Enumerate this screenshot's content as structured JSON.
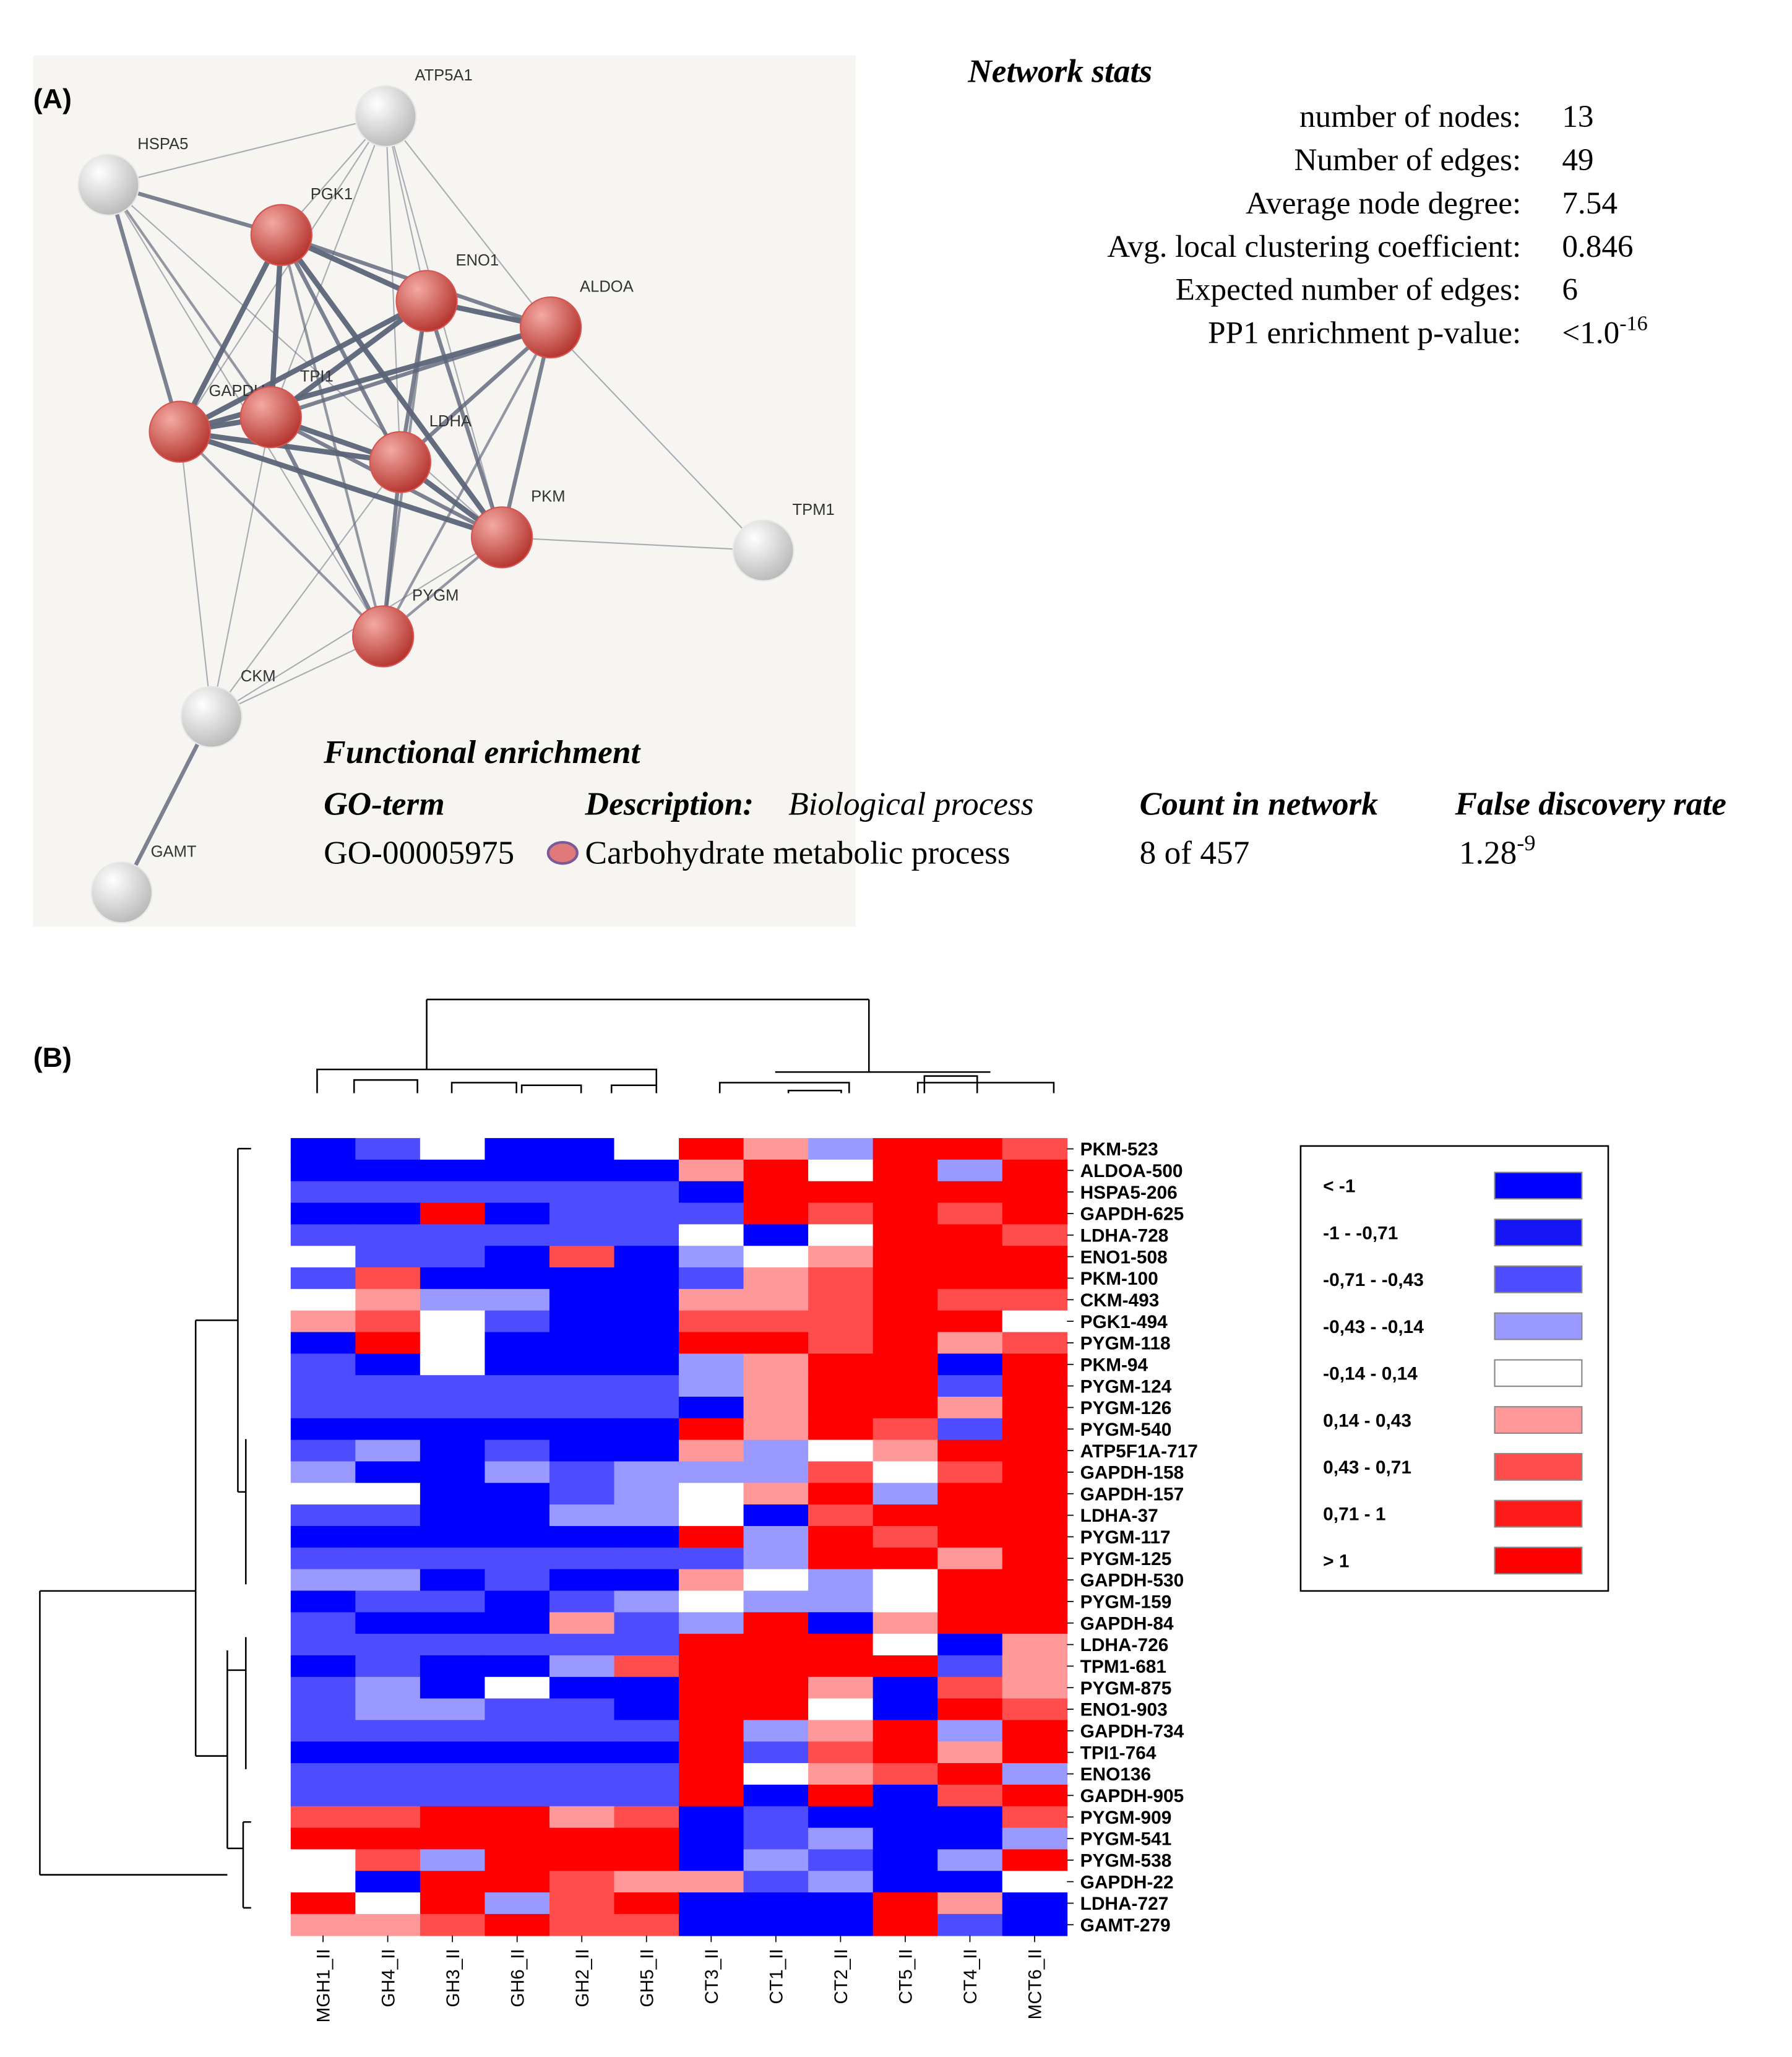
{
  "panel_a": {
    "label": "(A)",
    "network": {
      "nodes": [
        {
          "label": "ATP5A1",
          "color": "#e8e8e8"
        },
        {
          "label": "HSPA5",
          "color": "#e8e8e8"
        },
        {
          "label": "PGK1",
          "color": "#d9534f"
        },
        {
          "label": "ENO1",
          "color": "#d9534f"
        },
        {
          "label": "ALDOA",
          "color": "#d9534f"
        },
        {
          "label": "GAPDH",
          "color": "#d9534f"
        },
        {
          "label": "TPI1",
          "color": "#d9534f"
        },
        {
          "label": "LDHA",
          "color": "#d9534f"
        },
        {
          "label": "PKM",
          "color": "#d9534f"
        },
        {
          "label": "TPM1",
          "color": "#e8e8e8"
        },
        {
          "label": "PYGM",
          "color": "#d9534f"
        },
        {
          "label": "CKM",
          "color": "#e8e8e8"
        },
        {
          "label": "GAMT",
          "color": "#e8e8e8"
        }
      ]
    },
    "stats": {
      "title": "Network stats",
      "rows": [
        {
          "label": "number of nodes:",
          "value": "13"
        },
        {
          "label": "Number of edges:",
          "value": "49"
        },
        {
          "label": "Average node degree:",
          "value": "7.54"
        },
        {
          "label": "Avg. local clustering coefficient:",
          "value": "0.846"
        },
        {
          "label": "Expected number of edges:",
          "value": "6"
        },
        {
          "label": "PP1 enrichment p-value:",
          "value": "<1.0",
          "exponent": "-16"
        }
      ]
    },
    "enrichment": {
      "title": "Functional enrichment",
      "headers": {
        "go_term": "GO-term",
        "description": "Description:",
        "process": "Biological process",
        "count": "Count in network",
        "fdr": "False discovery rate"
      },
      "row": {
        "go_term": "GO-00005975",
        "description": "Carbohydrate metabolic process",
        "count": "8 of 457",
        "fdr": "1.28",
        "fdr_exponent": "-9"
      }
    }
  },
  "panel_b": {
    "label": "(B)"
  },
  "chart_data": {
    "type": "heatmap",
    "columns": [
      "MGH1_II",
      "GH4_II",
      "GH3_II",
      "GH6_II",
      "GH2_II",
      "GH5_II",
      "CT3_II",
      "CT1_II",
      "CT2_II",
      "CT5_II",
      "CT4_II",
      "MCT6_II"
    ],
    "rows": [
      "PKM-523",
      "ALDOA-500",
      "HSPA5-206",
      "GAPDH-625",
      "LDHA-728",
      "ENO1-508",
      "PKM-100",
      "CKM-493",
      "PGK1-494",
      "PYGM-118",
      "PKM-94",
      "PYGM-124",
      "PYGM-126",
      "PYGM-540",
      "ATP5F1A-717",
      "GAPDH-158",
      "GAPDH-157",
      "LDHA-37",
      "PYGM-117",
      "PYGM-125",
      "GAPDH-530",
      "PYGM-159",
      "GAPDH-84",
      "LDHA-726",
      "TPM1-681",
      "PYGM-875",
      "ENO1-903",
      "GAPDH-734",
      "TPI1-764",
      "ENO136",
      "GAPDH-905",
      "PYGM-909",
      "PYGM-541",
      "PYGM-538",
      "GAPDH-22",
      "LDHA-727",
      "GAMT-279"
    ],
    "values": [
      [
        -1.2,
        -0.57,
        0,
        -1.2,
        -1.2,
        0,
        1.2,
        0.28,
        -0.28,
        1.2,
        1.2,
        0.57
      ],
      [
        -1.2,
        -1.2,
        -1.2,
        -1.2,
        -1.2,
        -1.2,
        0.28,
        1.2,
        0,
        1.2,
        -0.28,
        1.2
      ],
      [
        -0.57,
        -0.57,
        -0.57,
        -0.57,
        -0.57,
        -0.57,
        -1.2,
        1.2,
        1.2,
        1.2,
        1.2,
        1.2
      ],
      [
        -1.2,
        -1.2,
        1.2,
        -1.2,
        -0.57,
        -0.57,
        -0.57,
        1.2,
        0.57,
        1.2,
        0.57,
        1.2
      ],
      [
        -0.57,
        -0.57,
        -0.57,
        -0.57,
        -0.57,
        -0.57,
        0,
        -1.2,
        0,
        1.2,
        1.2,
        0.57
      ],
      [
        0,
        -0.57,
        -0.57,
        -1.2,
        0.57,
        -1.2,
        -0.28,
        0,
        0.28,
        1.2,
        1.2,
        1.2
      ],
      [
        -0.57,
        0.57,
        -1.2,
        -1.2,
        -1.2,
        -1.2,
        -0.57,
        0.28,
        0.57,
        1.2,
        1.2,
        1.2
      ],
      [
        0,
        0.28,
        -0.28,
        -0.28,
        -1.2,
        -1.2,
        0.28,
        0.28,
        0.57,
        1.2,
        0.57,
        0.57
      ],
      [
        0.28,
        0.57,
        0,
        -0.57,
        -1.2,
        -1.2,
        0.57,
        0.57,
        0.57,
        1.2,
        1.2,
        0
      ],
      [
        -1.2,
        1.2,
        0,
        -1.2,
        -1.2,
        -1.2,
        1.2,
        1.2,
        0.57,
        1.2,
        0.28,
        0.57
      ],
      [
        -0.57,
        -1.2,
        0,
        -1.2,
        -1.2,
        -1.2,
        -0.28,
        0.28,
        1.2,
        1.2,
        -1.2,
        1.2
      ],
      [
        -0.57,
        -0.57,
        -0.57,
        -0.57,
        -0.57,
        -0.57,
        -0.28,
        0.28,
        1.2,
        1.2,
        -0.57,
        1.2
      ],
      [
        -0.57,
        -0.57,
        -0.57,
        -0.57,
        -0.57,
        -0.57,
        -1.2,
        0.28,
        1.2,
        1.2,
        0.28,
        1.2
      ],
      [
        -1.2,
        -1.2,
        -1.2,
        -1.2,
        -1.2,
        -1.2,
        1.2,
        0.28,
        1.2,
        0.57,
        -0.57,
        1.2
      ],
      [
        -0.57,
        -0.28,
        -1.2,
        -0.57,
        -1.2,
        -1.2,
        0.28,
        -0.28,
        0,
        0.28,
        1.2,
        1.2
      ],
      [
        -0.28,
        -1.2,
        -1.2,
        -0.28,
        -0.57,
        -0.28,
        -0.28,
        -0.28,
        0.57,
        0,
        0.57,
        1.2
      ],
      [
        0,
        0,
        -1.2,
        -1.2,
        -0.57,
        -0.28,
        0,
        0.28,
        1.2,
        -0.28,
        1.2,
        1.2
      ],
      [
        -0.57,
        -0.57,
        -1.2,
        -1.2,
        -0.28,
        -0.28,
        0,
        -1.2,
        0.57,
        1.2,
        1.2,
        1.2
      ],
      [
        -1.2,
        -1.2,
        -1.2,
        -1.2,
        -1.2,
        -1.2,
        1.2,
        -0.28,
        1.2,
        0.57,
        1.2,
        1.2
      ],
      [
        -0.57,
        -0.57,
        -0.57,
        -0.57,
        -0.57,
        -0.57,
        -0.57,
        -0.28,
        1.2,
        1.2,
        0.28,
        1.2
      ],
      [
        -0.28,
        -0.28,
        -1.2,
        -0.57,
        -1.2,
        -1.2,
        0.28,
        0,
        -0.28,
        0,
        1.2,
        1.2
      ],
      [
        -1.2,
        -0.57,
        -0.57,
        -1.2,
        -0.57,
        -0.28,
        0,
        -0.28,
        -0.28,
        0,
        1.2,
        1.2
      ],
      [
        -0.57,
        -1.2,
        -1.2,
        -1.2,
        0.28,
        -0.57,
        -0.28,
        1.2,
        -1.2,
        0.28,
        1.2,
        1.2
      ],
      [
        -0.57,
        -0.57,
        -0.57,
        -0.57,
        -0.57,
        -0.57,
        1.2,
        1.2,
        1.2,
        0,
        -1.2,
        0.28
      ],
      [
        -1.2,
        -0.57,
        -1.2,
        -1.2,
        -0.28,
        0.57,
        1.2,
        1.2,
        1.2,
        1.2,
        -0.57,
        0.28
      ],
      [
        -0.57,
        -0.28,
        -1.2,
        0,
        -1.2,
        -1.2,
        1.2,
        1.2,
        0.28,
        -1.2,
        0.57,
        0.28
      ],
      [
        -0.57,
        -0.28,
        -0.28,
        -0.57,
        -0.57,
        -1.2,
        1.2,
        1.2,
        0,
        -1.2,
        1.2,
        0.57
      ],
      [
        -0.57,
        -0.57,
        -0.57,
        -0.57,
        -0.57,
        -0.57,
        1.2,
        -0.28,
        0.28,
        1.2,
        -0.28,
        1.2
      ],
      [
        -1.2,
        -1.2,
        -1.2,
        -1.2,
        -1.2,
        -1.2,
        1.2,
        -0.57,
        0.57,
        1.2,
        0.28,
        1.2
      ],
      [
        -0.57,
        -0.57,
        -0.57,
        -0.57,
        -0.57,
        -0.57,
        1.2,
        0,
        0.28,
        0.57,
        1.2,
        -0.28
      ],
      [
        -0.57,
        -0.57,
        -0.57,
        -0.57,
        -0.57,
        -0.57,
        1.2,
        -1.2,
        1.2,
        -1.2,
        0.57,
        1.2
      ],
      [
        0.57,
        0.57,
        1.2,
        1.2,
        0.28,
        0.57,
        -1.2,
        -0.57,
        -1.2,
        -1.2,
        -1.2,
        0.57
      ],
      [
        1.2,
        1.2,
        1.2,
        1.2,
        1.2,
        1.2,
        -1.2,
        -0.57,
        -0.28,
        -1.2,
        -1.2,
        -0.28
      ],
      [
        0,
        0.57,
        -0.28,
        1.2,
        1.2,
        1.2,
        -1.2,
        -0.28,
        -0.57,
        -1.2,
        -0.28,
        1.2
      ],
      [
        0,
        -1.2,
        1.2,
        1.2,
        0.57,
        0.28,
        0.28,
        -0.57,
        -0.28,
        -1.2,
        -1.2,
        0
      ],
      [
        1.2,
        0,
        1.2,
        -0.28,
        0.57,
        1.2,
        -1.2,
        -1.2,
        -1.2,
        1.2,
        0.28,
        -1.2
      ],
      [
        0.28,
        0.28,
        0.57,
        1.2,
        0.57,
        0.57,
        -1.2,
        -1.2,
        -1.2,
        1.2,
        -0.57,
        -1.2
      ]
    ],
    "legend": {
      "labels": [
        "< -1",
        "-1 - -0,71",
        "-0,71 - -0,43",
        "-0,43 - -0,14",
        "-0,14 - 0,14",
        "0,14 - 0,43",
        "0,43 - 0,71",
        "0,71 - 1",
        "> 1"
      ],
      "colors": [
        "#0000ff",
        "#1414f5",
        "#4d4dff",
        "#9999ff",
        "#ffffff",
        "#ff9999",
        "#ff4d4d",
        "#ff1a1a",
        "#ff0000"
      ],
      "bounds": [
        -1,
        -0.71,
        -0.43,
        -0.14,
        0.14,
        0.43,
        0.71,
        1
      ]
    }
  }
}
